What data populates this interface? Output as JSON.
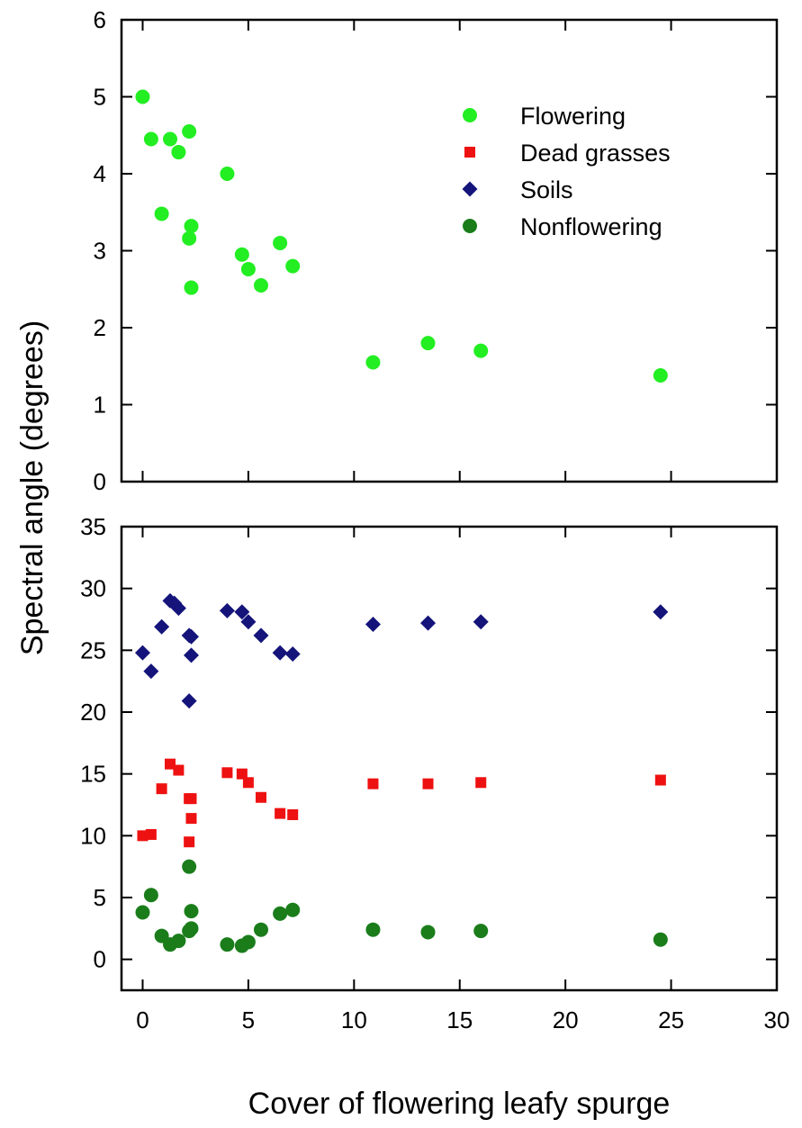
{
  "chart_data": {
    "xlabel": "Cover of flowering leafy spurge",
    "ylabel": "Spectral angle (degrees)",
    "xlim": [
      -1,
      30
    ],
    "xticks": [
      0,
      5,
      10,
      15,
      20,
      25,
      30
    ],
    "colors": {
      "flowering": "#22ee22",
      "dead_grasses": "#ee1111",
      "soils": "#14147a",
      "nonflowering": "#1a7d1a"
    },
    "panels": [
      {
        "type": "scatter",
        "ylim": [
          0,
          6
        ],
        "yticks": [
          0,
          1,
          2,
          3,
          4,
          5,
          6
        ],
        "legend": "top-right",
        "series": [
          {
            "name": "Flowering",
            "marker": "circle",
            "color_key": "flowering",
            "x": [
              0,
              0.4,
              0.9,
              1.3,
              1.7,
              2.2,
              2.2,
              2.3,
              2.3,
              4.0,
              4.7,
              5.0,
              5.6,
              6.5,
              7.1,
              10.9,
              13.5,
              16.0,
              24.5
            ],
            "y": [
              5.0,
              4.45,
              3.48,
              4.45,
              4.28,
              4.55,
              3.16,
              3.32,
              2.52,
              4.0,
              2.95,
              2.76,
              2.55,
              3.1,
              2.8,
              1.55,
              1.8,
              1.7,
              1.38
            ]
          }
        ]
      },
      {
        "type": "scatter",
        "ylim": [
          -2.5,
          35
        ],
        "yticks": [
          0,
          5,
          10,
          15,
          20,
          25,
          30,
          35
        ],
        "series": [
          {
            "name": "Dead grasses",
            "marker": "square",
            "color_key": "dead_grasses",
            "x": [
              0,
              0.4,
              0.9,
              1.3,
              1.7,
              2.2,
              2.2,
              2.3,
              2.3,
              4.0,
              4.7,
              5.0,
              5.6,
              6.5,
              7.1,
              10.9,
              13.5,
              16.0,
              24.5
            ],
            "y": [
              10.0,
              10.1,
              13.8,
              15.8,
              15.3,
              13.0,
              9.5,
              13.0,
              11.4,
              15.1,
              15.0,
              14.3,
              13.1,
              11.8,
              11.7,
              14.2,
              14.2,
              14.3,
              14.5
            ]
          },
          {
            "name": "Soils",
            "marker": "diamond",
            "color_key": "soils",
            "x": [
              0,
              0.4,
              0.9,
              1.3,
              1.5,
              1.7,
              2.2,
              2.2,
              2.3,
              2.3,
              4.0,
              4.7,
              5.0,
              5.6,
              6.5,
              7.1,
              10.9,
              13.5,
              16.0,
              24.5
            ],
            "y": [
              24.8,
              23.3,
              26.9,
              29.0,
              28.8,
              28.4,
              26.2,
              20.9,
              24.6,
              26.1,
              28.2,
              28.1,
              27.3,
              26.2,
              24.8,
              24.7,
              27.1,
              27.2,
              27.3,
              28.1
            ]
          },
          {
            "name": "Nonflowering",
            "marker": "circle",
            "color_key": "nonflowering",
            "x": [
              0,
              0.4,
              0.9,
              1.3,
              1.7,
              2.2,
              2.2,
              2.3,
              2.3,
              4.0,
              4.7,
              5.0,
              5.6,
              6.5,
              7.1,
              10.9,
              13.5,
              16.0,
              24.5
            ],
            "y": [
              3.8,
              5.2,
              1.9,
              1.2,
              1.5,
              7.5,
              2.3,
              3.9,
              2.5,
              1.2,
              1.1,
              1.4,
              2.4,
              3.7,
              4.0,
              2.4,
              2.2,
              2.3,
              1.6
            ]
          }
        ]
      }
    ]
  }
}
